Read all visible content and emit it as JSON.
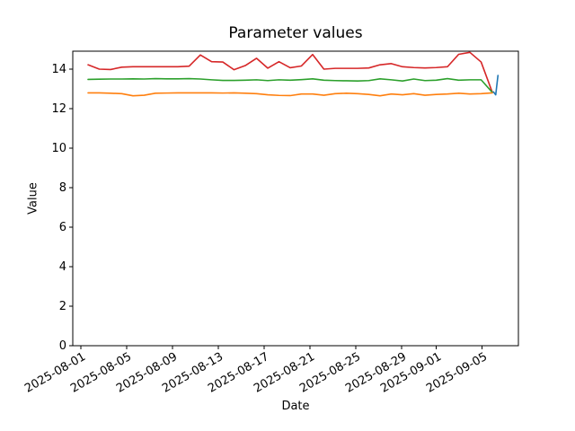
{
  "chart_data": {
    "type": "line",
    "title": "Parameter values",
    "xlabel": "Date",
    "ylabel": "Value",
    "grid": false,
    "legend": "none",
    "ylim": [
      0,
      14.95
    ],
    "y_axis": {
      "ticks": [
        0,
        2,
        4,
        6,
        8,
        10,
        12,
        14
      ]
    },
    "x_axis": {
      "tick_labels": [
        "2025-08-01",
        "2025-08-05",
        "2025-08-09",
        "2025-08-13",
        "2025-08-17",
        "2025-08-21",
        "2025-08-25",
        "2025-08-29",
        "2025-09-01",
        "2025-09-05"
      ],
      "tick_day_offsets": [
        0,
        4,
        8,
        12,
        16,
        20,
        24,
        28,
        31,
        35
      ],
      "label_rotation_deg": 30
    },
    "dates": [
      "2025-08-01",
      "2025-08-02",
      "2025-08-03",
      "2025-08-04",
      "2025-08-05",
      "2025-08-06",
      "2025-08-07",
      "2025-08-08",
      "2025-08-09",
      "2025-08-10",
      "2025-08-11",
      "2025-08-12",
      "2025-08-13",
      "2025-08-14",
      "2025-08-15",
      "2025-08-16",
      "2025-08-17",
      "2025-08-18",
      "2025-08-19",
      "2025-08-20",
      "2025-08-21",
      "2025-08-22",
      "2025-08-23",
      "2025-08-24",
      "2025-08-25",
      "2025-08-26",
      "2025-08-27",
      "2025-08-28",
      "2025-08-29",
      "2025-08-30",
      "2025-08-31",
      "2025-09-01",
      "2025-09-02",
      "2025-09-03",
      "2025-09-04",
      "2025-09-05",
      "2025-09-06"
    ],
    "series": [
      {
        "name": "series-red",
        "color": "#d62728",
        "values": [
          14.22,
          14.0,
          13.98,
          14.1,
          14.12,
          14.12,
          14.12,
          14.12,
          14.12,
          14.15,
          14.72,
          14.38,
          14.36,
          13.97,
          14.18,
          14.55,
          14.05,
          14.38,
          14.07,
          14.16,
          14.74,
          14.0,
          14.04,
          14.04,
          14.04,
          14.06,
          14.22,
          14.28,
          14.12,
          14.08,
          14.06,
          14.08,
          14.12,
          14.75,
          14.85,
          14.36,
          12.82
        ]
      },
      {
        "name": "series-green",
        "color": "#2ca02c",
        "values": [
          13.48,
          13.49,
          13.5,
          13.5,
          13.51,
          13.5,
          13.52,
          13.51,
          13.51,
          13.52,
          13.5,
          13.46,
          13.43,
          13.43,
          13.44,
          13.46,
          13.42,
          13.46,
          13.44,
          13.47,
          13.51,
          13.44,
          13.42,
          13.41,
          13.4,
          13.42,
          13.51,
          13.46,
          13.4,
          13.5,
          13.42,
          13.44,
          13.52,
          13.44,
          13.46,
          13.46,
          12.82
        ]
      },
      {
        "name": "series-orange",
        "color": "#ff7f0e",
        "values": [
          12.8,
          12.8,
          12.78,
          12.76,
          12.65,
          12.68,
          12.78,
          12.79,
          12.8,
          12.8,
          12.8,
          12.8,
          12.79,
          12.8,
          12.78,
          12.76,
          12.7,
          12.67,
          12.66,
          12.74,
          12.74,
          12.68,
          12.76,
          12.78,
          12.76,
          12.72,
          12.65,
          12.74,
          12.7,
          12.76,
          12.68,
          12.72,
          12.74,
          12.78,
          12.74,
          12.76,
          12.8
        ]
      },
      {
        "name": "series-blue",
        "color": "#1f77b4",
        "day_offsets": [
          36.1,
          36.3,
          36.5
        ],
        "values": [
          12.85,
          12.7,
          13.68
        ]
      }
    ]
  }
}
